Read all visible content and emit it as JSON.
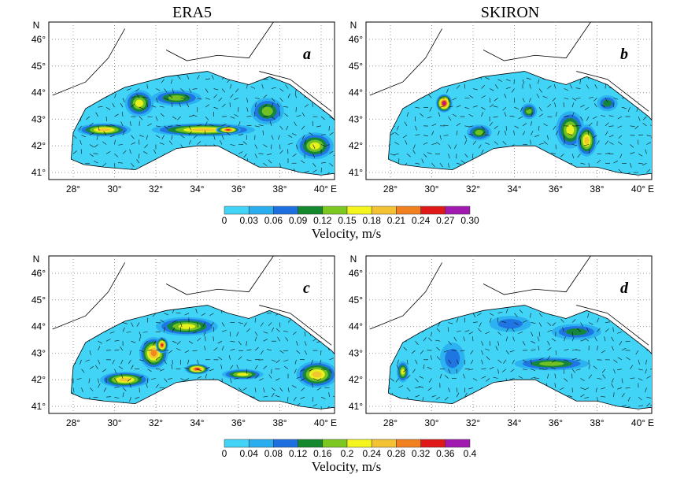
{
  "column_titles": [
    "ERA5",
    "SKIRON"
  ],
  "panels": [
    {
      "letter": "a"
    },
    {
      "letter": "b"
    },
    {
      "letter": "c"
    },
    {
      "letter": "d"
    }
  ],
  "axes": {
    "y_label": "N",
    "x_label": "E",
    "lat_ticks": [
      "46°",
      "45°",
      "44°",
      "43°",
      "42°",
      "41°"
    ],
    "lon_ticks": [
      "28°",
      "30°",
      "32°",
      "34°",
      "36°",
      "38°",
      "40°"
    ]
  },
  "colorbars": [
    {
      "ticks": [
        "0",
        "0.03",
        "0.06",
        "0.09",
        "0.12",
        "0.15",
        "0.18",
        "0.21",
        "0.24",
        "0.27",
        "0.30"
      ],
      "colors": [
        "#42d4f6",
        "#2aaef0",
        "#1e6fe0",
        "#13882c",
        "#7cc820",
        "#f5f51e",
        "#f2c232",
        "#f08020",
        "#e01818",
        "#a01ab0"
      ],
      "label": "Velocity, m/s"
    },
    {
      "ticks": [
        "0",
        "0.04",
        "0.08",
        "0.12",
        "0.16",
        "0.2",
        "0.24",
        "0.28",
        "0.32",
        "0.36",
        "0.4"
      ],
      "colors": [
        "#42d4f6",
        "#2aaef0",
        "#1e6fe0",
        "#13882c",
        "#7cc820",
        "#f5f51e",
        "#f2c232",
        "#f08020",
        "#e01818",
        "#a01ab0"
      ],
      "label": "Velocity, m/s"
    }
  ]
}
